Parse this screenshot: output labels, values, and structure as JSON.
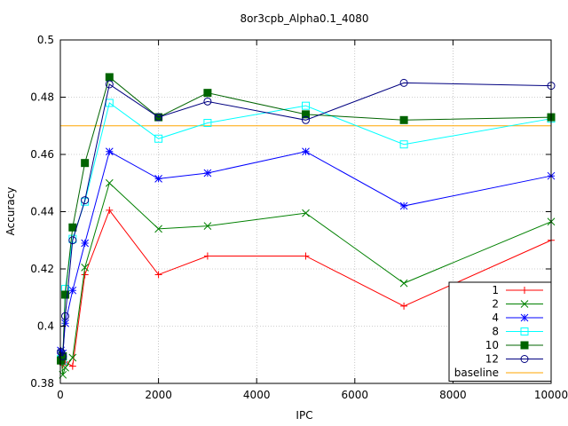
{
  "chart_data": {
    "type": "line",
    "title": "8or3cpb_Alpha0.1_4080",
    "xlabel": "IPC",
    "ylabel": "Accuracy",
    "xlim": [
      0,
      10000
    ],
    "ylim": [
      0.38,
      0.5
    ],
    "xticks": [
      0,
      2000,
      4000,
      6000,
      8000,
      10000
    ],
    "xtick_labels": [
      "0",
      "2000",
      "4000",
      "6000",
      "8000",
      "10000"
    ],
    "yticks": [
      0.38,
      0.4,
      0.42,
      0.44,
      0.46,
      0.48,
      0.5
    ],
    "ytick_labels": [
      "0.38",
      "0.4",
      "0.42",
      "0.44",
      "0.46",
      "0.48",
      "0.5"
    ],
    "grid": true,
    "legend_position": "bottom-right",
    "x": [
      10,
      50,
      100,
      250,
      500,
      1000,
      2000,
      3000,
      5000,
      7000,
      10000
    ],
    "series": [
      {
        "name": "1",
        "color": "#ff0000",
        "marker": "plus",
        "values": [
          0.3875,
          0.3865,
          0.3875,
          0.386,
          0.418,
          0.4405,
          0.418,
          0.4245,
          0.4245,
          0.407,
          0.43
        ]
      },
      {
        "name": "2",
        "color": "#008000",
        "marker": "x",
        "values": [
          0.3905,
          0.383,
          0.3855,
          0.389,
          0.4205,
          0.45,
          0.434,
          0.435,
          0.4395,
          0.415,
          0.4365
        ]
      },
      {
        "name": "4",
        "color": "#0000ff",
        "marker": "star",
        "values": [
          0.3915,
          0.3905,
          0.401,
          0.4125,
          0.429,
          0.461,
          0.4515,
          0.4535,
          0.461,
          0.442,
          0.4525
        ]
      },
      {
        "name": "8",
        "color": "#00ffff",
        "marker": "open-square",
        "values": [
          0.3885,
          0.388,
          0.413,
          0.4305,
          0.4435,
          0.478,
          0.4655,
          0.471,
          0.477,
          0.4635,
          0.4725
        ]
      },
      {
        "name": "10",
        "color": "#006400",
        "marker": "filled-square",
        "values": [
          0.388,
          0.3895,
          0.411,
          0.4345,
          0.457,
          0.487,
          0.473,
          0.4815,
          0.474,
          0.472,
          0.473
        ]
      },
      {
        "name": "12",
        "color": "#000080",
        "marker": "open-circle",
        "values": [
          0.391,
          0.3895,
          0.4035,
          0.43,
          0.444,
          0.4845,
          0.473,
          0.4785,
          0.472,
          0.485,
          0.484
        ]
      }
    ],
    "baseline": {
      "name": "baseline",
      "color": "#ffa500",
      "value": 0.47
    }
  }
}
